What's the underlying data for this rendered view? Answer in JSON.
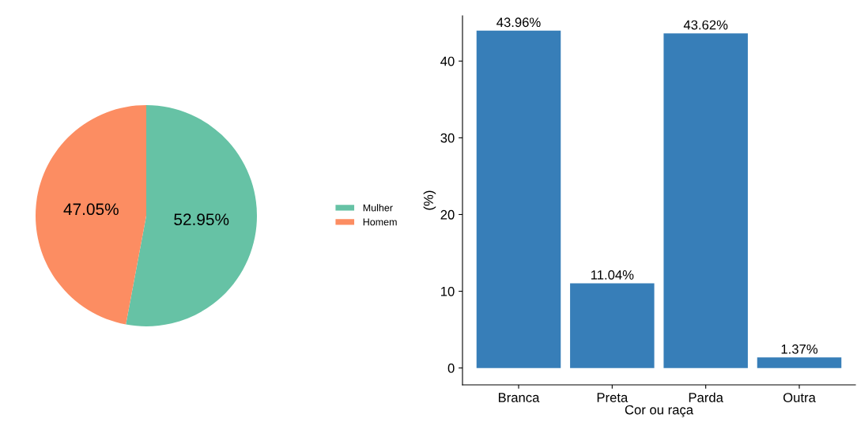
{
  "chart_data": [
    {
      "type": "pie",
      "categories": [
        "Mulher",
        "Homem"
      ],
      "values": [
        52.95,
        47.05
      ],
      "colors": [
        "#66c2a5",
        "#fc8d62"
      ],
      "value_labels": [
        "52.95%",
        "47.05%"
      ],
      "legend": "right"
    },
    {
      "type": "bar",
      "xlabel": "Cor ou raça",
      "ylabel": "(%)",
      "categories": [
        "Branca",
        "Preta",
        "Parda",
        "Outra"
      ],
      "values": [
        43.96,
        11.04,
        43.62,
        1.37
      ],
      "color": "#377eb8",
      "value_labels": [
        "43.96%",
        "11.04%",
        "43.62%",
        "1.37%"
      ],
      "ylim": [
        -2.2,
        45.9
      ],
      "yticks": [
        0,
        10,
        20,
        30,
        40
      ],
      "grid": false
    }
  ]
}
